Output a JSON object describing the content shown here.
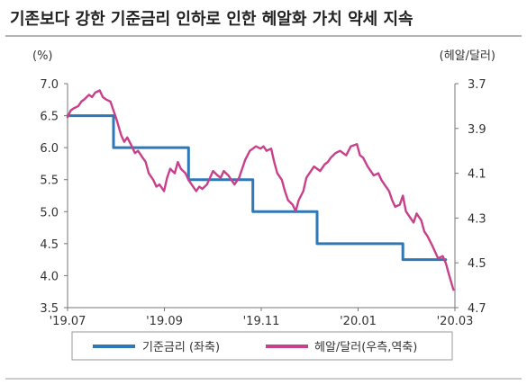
{
  "chart_data": {
    "type": "line",
    "title": "기존보다 강한 기준금리 인하로 인한 헤알화 가치 약세 지속",
    "left_unit": "(%)",
    "right_unit": "(헤알/달러)",
    "x_ticks": [
      "'19.07",
      "'19.09",
      "'19.11",
      "'20.01",
      "'20.03"
    ],
    "x_range": [
      "2019-07-01",
      "2020-03-10"
    ],
    "y_left": {
      "min": 3.5,
      "max": 7.0,
      "ticks": [
        "7.0",
        "6.5",
        "6.0",
        "5.5",
        "5.0",
        "4.5",
        "4.0",
        "3.5"
      ]
    },
    "y_right": {
      "min": 3.7,
      "max": 4.7,
      "inverted": true,
      "ticks": [
        "3.7",
        "3.9",
        "4.1",
        "4.3",
        "4.5",
        "4.7"
      ]
    },
    "grid": false,
    "legend_position": "bottom",
    "series": [
      {
        "name": "기준금리 (좌축)",
        "axis": "left",
        "color": "#2e78b7",
        "step": true,
        "points": [
          [
            "2019-07-01",
            6.5
          ],
          [
            "2019-07-31",
            6.0
          ],
          [
            "2019-09-18",
            5.5
          ],
          [
            "2019-10-30",
            5.0
          ],
          [
            "2019-12-11",
            4.5
          ],
          [
            "2020-02-05",
            4.25
          ],
          [
            "2020-03-04",
            4.25
          ]
        ]
      },
      {
        "name": "헤알/달러(우측,역축)",
        "axis": "right",
        "color": "#c8408a",
        "points": [
          [
            "2019-07-01",
            3.85
          ],
          [
            "2019-07-03",
            3.82
          ],
          [
            "2019-07-05",
            3.81
          ],
          [
            "2019-07-08",
            3.8
          ],
          [
            "2019-07-10",
            3.78
          ],
          [
            "2019-07-12",
            3.77
          ],
          [
            "2019-07-15",
            3.75
          ],
          [
            "2019-07-17",
            3.76
          ],
          [
            "2019-07-19",
            3.74
          ],
          [
            "2019-07-22",
            3.73
          ],
          [
            "2019-07-24",
            3.76
          ],
          [
            "2019-07-26",
            3.77
          ],
          [
            "2019-07-29",
            3.78
          ],
          [
            "2019-07-31",
            3.82
          ],
          [
            "2019-08-02",
            3.86
          ],
          [
            "2019-08-05",
            3.93
          ],
          [
            "2019-08-07",
            3.96
          ],
          [
            "2019-08-09",
            3.94
          ],
          [
            "2019-08-12",
            3.98
          ],
          [
            "2019-08-14",
            4.01
          ],
          [
            "2019-08-16",
            4.0
          ],
          [
            "2019-08-19",
            4.03
          ],
          [
            "2019-08-21",
            4.05
          ],
          [
            "2019-08-23",
            4.1
          ],
          [
            "2019-08-26",
            4.13
          ],
          [
            "2019-08-28",
            4.16
          ],
          [
            "2019-08-30",
            4.15
          ],
          [
            "2019-09-02",
            4.18
          ],
          [
            "2019-09-04",
            4.12
          ],
          [
            "2019-09-06",
            4.08
          ],
          [
            "2019-09-09",
            4.1
          ],
          [
            "2019-09-11",
            4.05
          ],
          [
            "2019-09-13",
            4.08
          ],
          [
            "2019-09-16",
            4.1
          ],
          [
            "2019-09-18",
            4.13
          ],
          [
            "2019-09-20",
            4.15
          ],
          [
            "2019-09-23",
            4.18
          ],
          [
            "2019-09-25",
            4.16
          ],
          [
            "2019-09-27",
            4.17
          ],
          [
            "2019-09-30",
            4.15
          ],
          [
            "2019-10-02",
            4.12
          ],
          [
            "2019-10-04",
            4.09
          ],
          [
            "2019-10-07",
            4.11
          ],
          [
            "2019-10-09",
            4.12
          ],
          [
            "2019-10-11",
            4.09
          ],
          [
            "2019-10-14",
            4.11
          ],
          [
            "2019-10-16",
            4.13
          ],
          [
            "2019-10-18",
            4.15
          ],
          [
            "2019-10-21",
            4.12
          ],
          [
            "2019-10-23",
            4.08
          ],
          [
            "2019-10-25",
            4.04
          ],
          [
            "2019-10-28",
            4.0
          ],
          [
            "2019-10-30",
            3.99
          ],
          [
            "2019-11-01",
            3.98
          ],
          [
            "2019-11-04",
            3.99
          ],
          [
            "2019-11-06",
            3.98
          ],
          [
            "2019-11-08",
            4.0
          ],
          [
            "2019-11-11",
            3.99
          ],
          [
            "2019-11-13",
            4.05
          ],
          [
            "2019-11-15",
            4.1
          ],
          [
            "2019-11-18",
            4.13
          ],
          [
            "2019-11-20",
            4.18
          ],
          [
            "2019-11-22",
            4.22
          ],
          [
            "2019-11-25",
            4.24
          ],
          [
            "2019-11-27",
            4.27
          ],
          [
            "2019-11-29",
            4.22
          ],
          [
            "2019-12-02",
            4.18
          ],
          [
            "2019-12-04",
            4.12
          ],
          [
            "2019-12-06",
            4.1
          ],
          [
            "2019-12-09",
            4.07
          ],
          [
            "2019-12-11",
            4.08
          ],
          [
            "2019-12-13",
            4.09
          ],
          [
            "2019-12-16",
            4.06
          ],
          [
            "2019-12-18",
            4.05
          ],
          [
            "2019-12-20",
            4.03
          ],
          [
            "2019-12-23",
            4.01
          ],
          [
            "2019-12-26",
            4.0
          ],
          [
            "2019-12-30",
            4.02
          ],
          [
            "2020-01-02",
            3.98
          ],
          [
            "2020-01-06",
            3.97
          ],
          [
            "2020-01-08",
            4.02
          ],
          [
            "2020-01-10",
            4.03
          ],
          [
            "2020-01-13",
            4.07
          ],
          [
            "2020-01-15",
            4.09
          ],
          [
            "2020-01-17",
            4.11
          ],
          [
            "2020-01-20",
            4.1
          ],
          [
            "2020-01-22",
            4.13
          ],
          [
            "2020-01-24",
            4.15
          ],
          [
            "2020-01-27",
            4.18
          ],
          [
            "2020-01-29",
            4.22
          ],
          [
            "2020-01-31",
            4.25
          ],
          [
            "2020-02-03",
            4.24
          ],
          [
            "2020-02-05",
            4.2
          ],
          [
            "2020-02-07",
            4.27
          ],
          [
            "2020-02-10",
            4.3
          ],
          [
            "2020-02-12",
            4.32
          ],
          [
            "2020-02-14",
            4.28
          ],
          [
            "2020-02-17",
            4.31
          ],
          [
            "2020-02-19",
            4.36
          ],
          [
            "2020-02-21",
            4.38
          ],
          [
            "2020-02-24",
            4.42
          ],
          [
            "2020-02-26",
            4.45
          ],
          [
            "2020-02-28",
            4.48
          ],
          [
            "2020-03-02",
            4.47
          ],
          [
            "2020-03-04",
            4.5
          ],
          [
            "2020-03-06",
            4.55
          ],
          [
            "2020-03-09",
            4.62
          ]
        ]
      }
    ]
  }
}
